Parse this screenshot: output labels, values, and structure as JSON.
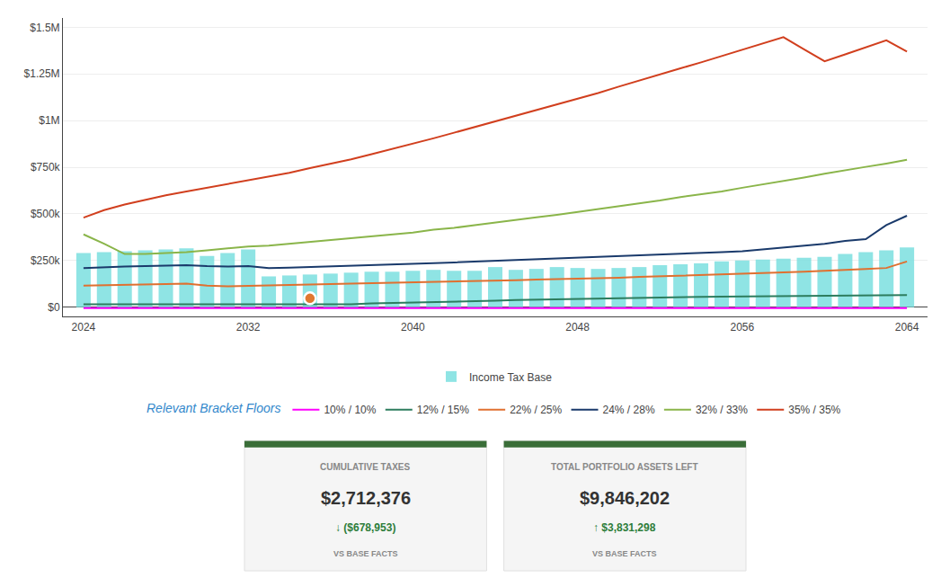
{
  "chart_data": {
    "type": "bar",
    "x": [
      2024,
      2025,
      2026,
      2027,
      2028,
      2029,
      2030,
      2031,
      2032,
      2033,
      2034,
      2035,
      2036,
      2037,
      2038,
      2039,
      2040,
      2041,
      2042,
      2043,
      2044,
      2045,
      2046,
      2047,
      2048,
      2049,
      2050,
      2051,
      2052,
      2053,
      2054,
      2055,
      2056,
      2057,
      2058,
      2059,
      2060,
      2061,
      2062,
      2063,
      2064
    ],
    "series": [
      {
        "name": "Income Tax Base",
        "type": "bar",
        "color": "#7ce0e0",
        "values": [
          290000,
          295000,
          300000,
          305000,
          310000,
          315000,
          275000,
          290000,
          310000,
          165000,
          170000,
          175000,
          180000,
          185000,
          190000,
          190000,
          195000,
          200000,
          195000,
          195000,
          215000,
          200000,
          205000,
          215000,
          210000,
          205000,
          210000,
          215000,
          225000,
          230000,
          235000,
          245000,
          250000,
          255000,
          260000,
          265000,
          270000,
          285000,
          295000,
          305000,
          320000
        ]
      },
      {
        "name": "10% / 10%",
        "type": "line",
        "color": "#ff00ff",
        "values": [
          -5000,
          -5000,
          -5000,
          -5000,
          -5000,
          -5000,
          -5000,
          -5000,
          -5000,
          -5000,
          -5000,
          -5000,
          -5000,
          -5000,
          -5000,
          -5000,
          -5000,
          -5000,
          -5000,
          -5000,
          -5000,
          -5000,
          -5000,
          -5000,
          -5000,
          -5000,
          -5000,
          -5000,
          -5000,
          -5000,
          -5000,
          -5000,
          -5000,
          -5000,
          -5000,
          -5000,
          -5000,
          -5000,
          -5000,
          -5000,
          -5000
        ]
      },
      {
        "name": "12% / 15%",
        "type": "line",
        "color": "#2d7d5e",
        "values": [
          15000,
          15000,
          15000,
          15000,
          15000,
          15000,
          15000,
          15000,
          15000,
          15000,
          15000,
          15000,
          15000,
          15000,
          20000,
          22000,
          25000,
          28000,
          30000,
          32000,
          35000,
          38000,
          40000,
          42000,
          45000,
          47000,
          50000,
          52000,
          53000,
          54000,
          55000,
          56000,
          57000,
          58000,
          59000,
          60000,
          61000,
          62000,
          63000,
          64000,
          65000
        ]
      },
      {
        "name": "22% / 25%",
        "type": "line",
        "color": "#e07030",
        "values": [
          115000,
          118000,
          120000,
          122000,
          124000,
          126000,
          115000,
          112000,
          115000,
          118000,
          120000,
          122000,
          124000,
          126000,
          128000,
          130000,
          132000,
          135000,
          138000,
          140000,
          143000,
          145000,
          148000,
          150000,
          153000,
          155000,
          158000,
          162000,
          165000,
          168000,
          172000,
          175000,
          178000,
          182000,
          186000,
          190000,
          194000,
          200000,
          205000,
          210000,
          245000
        ]
      },
      {
        "name": "24% / 28%",
        "type": "line",
        "color": "#1a3a6b",
        "values": [
          210000,
          215000,
          218000,
          220000,
          222000,
          225000,
          220000,
          218000,
          220000,
          210000,
          212000,
          215000,
          218000,
          222000,
          225000,
          228000,
          232000,
          236000,
          240000,
          244000,
          248000,
          252000,
          256000,
          260000,
          264000,
          268000,
          272000,
          276000,
          280000,
          285000,
          290000,
          295000,
          300000,
          310000,
          320000,
          330000,
          340000,
          355000,
          365000,
          440000,
          490000
        ]
      },
      {
        "name": "32% / 33%",
        "type": "line",
        "color": "#8ab54a",
        "values": [
          390000,
          340000,
          285000,
          285000,
          290000,
          295000,
          305000,
          315000,
          325000,
          330000,
          340000,
          350000,
          360000,
          370000,
          380000,
          390000,
          400000,
          415000,
          425000,
          440000,
          455000,
          468000,
          482000,
          495000,
          510000,
          525000,
          540000,
          558000,
          572000,
          590000,
          605000,
          620000,
          640000,
          658000,
          675000,
          695000,
          715000,
          735000,
          752000,
          770000,
          790000
        ]
      },
      {
        "name": "35% / 35%",
        "type": "line",
        "color": "#d13f1e",
        "values": [
          480000,
          520000,
          550000,
          575000,
          600000,
          620000,
          640000,
          660000,
          680000,
          700000,
          720000,
          745000,
          768000,
          792000,
          820000,
          848000,
          875000,
          905000,
          935000,
          965000,
          995000,
          1025000,
          1055000,
          1085000,
          1115000,
          1148000,
          1182000,
          1215000,
          1250000,
          1280000,
          1312000,
          1345000,
          1378000,
          1412000,
          1447000,
          1382000,
          1318000,
          1355000,
          1393000,
          1430000,
          1370000
        ]
      },
      {
        "type": "scatter",
        "marker": "circle",
        "color": "#e07830",
        "x": [
          2035
        ],
        "values": [
          47500
        ]
      }
    ],
    "xlim": [
      2023,
      2065
    ],
    "xticks": [
      2024,
      2032,
      2040,
      2048,
      2056,
      2064
    ],
    "ylim": [
      -50000,
      1550000
    ],
    "yticks": [
      {
        "value": 0,
        "label": "$0"
      },
      {
        "value": 250000,
        "label": "$250k"
      },
      {
        "value": 500000,
        "label": "$500k"
      },
      {
        "value": 750000,
        "label": "$750k"
      },
      {
        "value": 1000000,
        "label": "$1M"
      },
      {
        "value": 1250000,
        "label": "$1.25M"
      },
      {
        "value": 1500000,
        "label": "$1.5M"
      }
    ],
    "grid": "y",
    "legend": "bottom",
    "annotations": [
      {
        "text": "Relevant Bracket Floors",
        "color": "#3388cc"
      }
    ],
    "cards": [
      {
        "label": "CUMULATIVE TAXES",
        "value": "$2,712,376",
        "delta": "↓ ($678,953)",
        "vs": "VS BASE FACTS",
        "delta_color": "#2d7d3a",
        "top_color": "#3a6e38"
      },
      {
        "label": "TOTAL PORTFOLIO ASSETS LEFT",
        "value": "$9,846,202",
        "delta": "↑ $3,831,298",
        "vs": "VS BASE FACTS",
        "delta_color": "#2d7d3a",
        "top_color": "#3a6e38"
      }
    ]
  }
}
